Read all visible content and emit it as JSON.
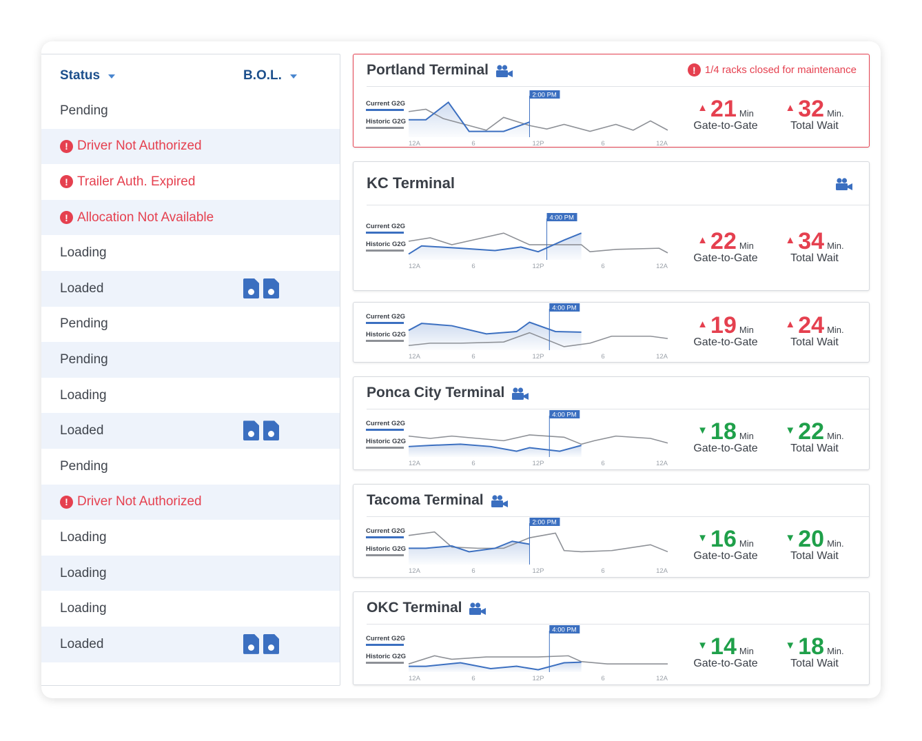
{
  "columns": {
    "status": "Status",
    "bol": "B.O.L."
  },
  "rows": [
    {
      "status": "Pending",
      "error": false,
      "docs": false
    },
    {
      "status": "Driver Not Authorized",
      "error": true,
      "docs": false
    },
    {
      "status": "Trailer Auth. Expired",
      "error": true,
      "docs": false
    },
    {
      "status": "Allocation Not Available",
      "error": true,
      "docs": false
    },
    {
      "status": "Loading",
      "error": false,
      "docs": false
    },
    {
      "status": "Loaded",
      "error": false,
      "docs": true
    },
    {
      "status": "Pending",
      "error": false,
      "docs": false
    },
    {
      "status": "Pending",
      "error": false,
      "docs": false
    },
    {
      "status": "Loading",
      "error": false,
      "docs": false
    },
    {
      "status": "Loaded",
      "error": false,
      "docs": true
    },
    {
      "status": "Pending",
      "error": false,
      "docs": false
    },
    {
      "status": "Driver Not Authorized",
      "error": true,
      "docs": false
    },
    {
      "status": "Loading",
      "error": false,
      "docs": false
    },
    {
      "status": "Loading",
      "error": false,
      "docs": false
    },
    {
      "status": "Loading",
      "error": false,
      "docs": false
    },
    {
      "status": "Loaded",
      "error": false,
      "docs": true
    }
  ],
  "legend": {
    "current": "Current G2G",
    "historic": "Historic G2G"
  },
  "x_ticks": [
    "12A",
    "6",
    "12P",
    "6",
    "12A"
  ],
  "metric_labels": {
    "g2g": "Gate-to-Gate",
    "wait": "Total Wait",
    "min_g2g": "Min",
    "min_wait": "Min."
  },
  "colors": {
    "current": "#3b6fc0",
    "historic": "#8d9096",
    "up": "#e5404f",
    "down": "#1fa04a",
    "accent": "#1c4f8c"
  },
  "terminals": [
    {
      "title": "Portland Terminal",
      "alert": "1/4 racks closed for maintenance",
      "marker": "2:00 PM",
      "marker_x": 14,
      "g2g": 21,
      "wait": 32,
      "trend": "up",
      "current": [
        [
          0,
          45
        ],
        [
          2,
          45
        ],
        [
          4.6,
          60
        ],
        [
          7,
          35
        ],
        [
          11,
          35
        ],
        [
          14,
          43
        ]
      ],
      "historic": [
        [
          0,
          52
        ],
        [
          2,
          54
        ],
        [
          4,
          46
        ],
        [
          7,
          40
        ],
        [
          9,
          36
        ],
        [
          11,
          47
        ],
        [
          14,
          40
        ],
        [
          16,
          37
        ],
        [
          18,
          41
        ],
        [
          21,
          35
        ],
        [
          24,
          41
        ],
        [
          26,
          36
        ],
        [
          28,
          44
        ],
        [
          30,
          36
        ]
      ]
    },
    {
      "title": "KC Terminal",
      "alert": "",
      "marker": "4:00 PM",
      "marker_x": 16,
      "g2g": 22,
      "wait": 34,
      "trend": "up",
      "current": [
        [
          0,
          35
        ],
        [
          1.5,
          42
        ],
        [
          6,
          40
        ],
        [
          10,
          38
        ],
        [
          13,
          41
        ],
        [
          15,
          37
        ],
        [
          18,
          47
        ],
        [
          20,
          53
        ]
      ],
      "historic": [
        [
          0,
          46
        ],
        [
          2.5,
          49
        ],
        [
          5,
          43
        ],
        [
          8,
          48
        ],
        [
          11,
          53
        ],
        [
          14,
          43
        ],
        [
          17,
          43
        ],
        [
          20,
          43
        ],
        [
          21,
          37
        ],
        [
          24,
          39
        ],
        [
          29,
          40
        ],
        [
          30,
          36
        ]
      ]
    },
    {
      "title": "",
      "alert": "",
      "marker": "4:00 PM",
      "marker_x": 16.3,
      "g2g": 19,
      "wait": 24,
      "trend": "up",
      "current": [
        [
          0,
          47
        ],
        [
          1.5,
          53
        ],
        [
          5,
          51
        ],
        [
          9,
          44
        ],
        [
          12.5,
          46
        ],
        [
          14,
          54
        ],
        [
          17,
          46
        ],
        [
          20,
          45.5
        ]
      ],
      "historic": [
        [
          0,
          34
        ],
        [
          2.5,
          36
        ],
        [
          6,
          36
        ],
        [
          11,
          37
        ],
        [
          14,
          45
        ],
        [
          18,
          33
        ],
        [
          21,
          36
        ],
        [
          23.5,
          42
        ],
        [
          28,
          42
        ],
        [
          30,
          40
        ]
      ]
    },
    {
      "title": "Ponca City Terminal",
      "alert": "",
      "marker": "4:00 PM",
      "marker_x": 16.3,
      "g2g": 18,
      "wait": 22,
      "trend": "down",
      "current": [
        [
          0,
          39
        ],
        [
          2.5,
          40
        ],
        [
          6,
          41
        ],
        [
          9.5,
          39
        ],
        [
          12.5,
          35
        ],
        [
          14,
          38
        ],
        [
          17.5,
          35
        ],
        [
          20,
          40
        ]
      ],
      "historic": [
        [
          0,
          48
        ],
        [
          2.5,
          46
        ],
        [
          5,
          48
        ],
        [
          8,
          46
        ],
        [
          11,
          44
        ],
        [
          14,
          49
        ],
        [
          18,
          47
        ],
        [
          20,
          41
        ],
        [
          21.5,
          44
        ],
        [
          24,
          48
        ],
        [
          28,
          46
        ],
        [
          30,
          42
        ]
      ]
    },
    {
      "title": "Tacoma Terminal",
      "alert": "",
      "marker": "2:00 PM",
      "marker_x": 14,
      "g2g": 16,
      "wait": 20,
      "trend": "down",
      "current": [
        [
          0,
          44
        ],
        [
          2,
          44
        ],
        [
          5,
          46
        ],
        [
          7,
          41
        ],
        [
          10,
          44
        ],
        [
          12,
          50
        ],
        [
          14,
          47.5
        ]
      ],
      "historic": [
        [
          0,
          55
        ],
        [
          3,
          58
        ],
        [
          5,
          45
        ],
        [
          8,
          44
        ],
        [
          11,
          44
        ],
        [
          14,
          53
        ],
        [
          17,
          57
        ],
        [
          18,
          42
        ],
        [
          20,
          41
        ],
        [
          23.5,
          42
        ],
        [
          28,
          47
        ],
        [
          30,
          41
        ]
      ]
    },
    {
      "title": "OKC Terminal",
      "alert": "",
      "marker": "4:00 PM",
      "marker_x": 16.3,
      "g2g": 14,
      "wait": 18,
      "trend": "down",
      "current": [
        [
          0,
          35
        ],
        [
          2,
          35
        ],
        [
          6,
          38
        ],
        [
          9.5,
          33
        ],
        [
          12.5,
          35
        ],
        [
          15,
          32
        ],
        [
          18,
          38
        ],
        [
          20,
          38.5
        ]
      ],
      "historic": [
        [
          0,
          37
        ],
        [
          3,
          44
        ],
        [
          5,
          41
        ],
        [
          9,
          43
        ],
        [
          11.5,
          43
        ],
        [
          15,
          43
        ],
        [
          18.5,
          44
        ],
        [
          20,
          39
        ],
        [
          23,
          37
        ],
        [
          27,
          37
        ],
        [
          30,
          37
        ]
      ]
    }
  ]
}
